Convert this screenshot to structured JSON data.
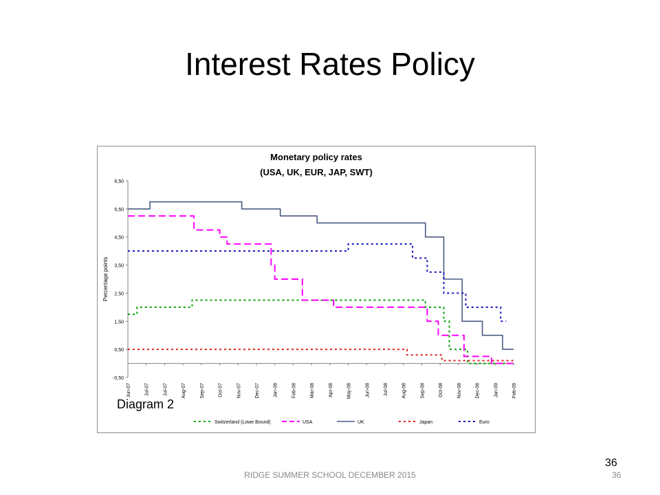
{
  "slide": {
    "title": "Interest  Rates Policy",
    "diagram_label": "Diagram 2",
    "slide_number": "36",
    "footer_text": "RIDGE SUMMER SCHOOL DECEMBER 2015",
    "footer_number": "36"
  },
  "chart_data": {
    "type": "line",
    "title": "Monetary policy rates",
    "subtitle": "(USA, UK, EUR, JAP, SWT)",
    "ylabel": "Percentage points",
    "ylim": [
      -0.5,
      6.5
    ],
    "yticks": [
      -0.5,
      0.5,
      1.5,
      2.5,
      3.5,
      4.5,
      5.5,
      6.5
    ],
    "ytick_labels": [
      "-0,50",
      "0,50",
      "1,50",
      "2,50",
      "3,50",
      "4,50",
      "5,50",
      "6,50"
    ],
    "xlim": [
      0,
      21
    ],
    "x_tick_labels": [
      "Jun-07",
      "Jul-07",
      "Jul-07",
      "Aug-07",
      "Sep-07",
      "Oct-07",
      "Nov-07",
      "Dec-07",
      "Jan-08",
      "Feb-08",
      "Mar-08",
      "Apr-08",
      "May-08",
      "Jun-08",
      "Jul-08",
      "Aug-08",
      "Sep-08",
      "Oct-08",
      "Nov-08",
      "Dec-08",
      "Jan-09",
      "Feb-09"
    ],
    "grid": false,
    "legend_position": "bottom",
    "series": [
      {
        "name": "Switzerland (Lowe Bound)",
        "color": "#00a000",
        "style": "dotted",
        "x": [
          0,
          0.5,
          0.5,
          3.5,
          3.5,
          16.2,
          16.2,
          17.2,
          17.2,
          17.5,
          17.5,
          18.5,
          18.5,
          21
        ],
        "values": [
          1.75,
          1.75,
          2.0,
          2.0,
          2.25,
          2.25,
          2.0,
          2.0,
          1.5,
          1.5,
          0.5,
          0.5,
          0.0,
          0.0
        ]
      },
      {
        "name": "USA",
        "color": "#ff00ff",
        "style": "dashed",
        "x": [
          0,
          3.6,
          3.6,
          5.0,
          5.0,
          5.4,
          5.4,
          7.8,
          7.8,
          8.0,
          8.0,
          8.2,
          8.2,
          9.5,
          9.5,
          11.2,
          11.2,
          16.3,
          16.3,
          16.9,
          16.9,
          18.3,
          18.3,
          19.8,
          19.8,
          21
        ],
        "values": [
          5.25,
          5.25,
          4.75,
          4.75,
          4.5,
          4.5,
          4.25,
          4.25,
          3.5,
          3.5,
          3.0,
          3.0,
          3.0,
          3.0,
          2.25,
          2.25,
          2.0,
          2.0,
          1.5,
          1.5,
          1.0,
          1.0,
          0.25,
          0.25,
          0.0,
          0.0
        ]
      },
      {
        "name": "UK",
        "color": "#4a5a80",
        "style": "solid",
        "x": [
          0,
          1.2,
          1.2,
          6.2,
          6.2,
          8.3,
          8.3,
          10.3,
          10.3,
          16.2,
          16.2,
          17.2,
          17.2,
          18.2,
          18.2,
          19.3,
          19.3,
          20.4,
          20.4,
          21
        ],
        "values": [
          5.5,
          5.5,
          5.75,
          5.75,
          5.5,
          5.5,
          5.25,
          5.25,
          5.0,
          5.0,
          4.5,
          4.5,
          3.0,
          3.0,
          1.5,
          1.5,
          1.0,
          1.0,
          0.5,
          0.5
        ]
      },
      {
        "name": "Japan",
        "color": "#e02020",
        "style": "dotted",
        "x": [
          0,
          15.2,
          15.2,
          17.1,
          17.1,
          21
        ],
        "values": [
          0.5,
          0.5,
          0.3,
          0.3,
          0.1,
          0.1
        ]
      },
      {
        "name": "Euro",
        "color": "#1010c0",
        "style": "dotted",
        "x": [
          0,
          12.0,
          12.0,
          15.5,
          15.5,
          16.3,
          16.3,
          17.2,
          17.2,
          18.4,
          18.4,
          20.3,
          20.3,
          20.6
        ],
        "values": [
          4.0,
          4.0,
          4.25,
          4.25,
          3.75,
          3.75,
          3.25,
          3.25,
          2.5,
          2.5,
          2.0,
          2.0,
          1.5,
          1.5
        ]
      }
    ]
  }
}
